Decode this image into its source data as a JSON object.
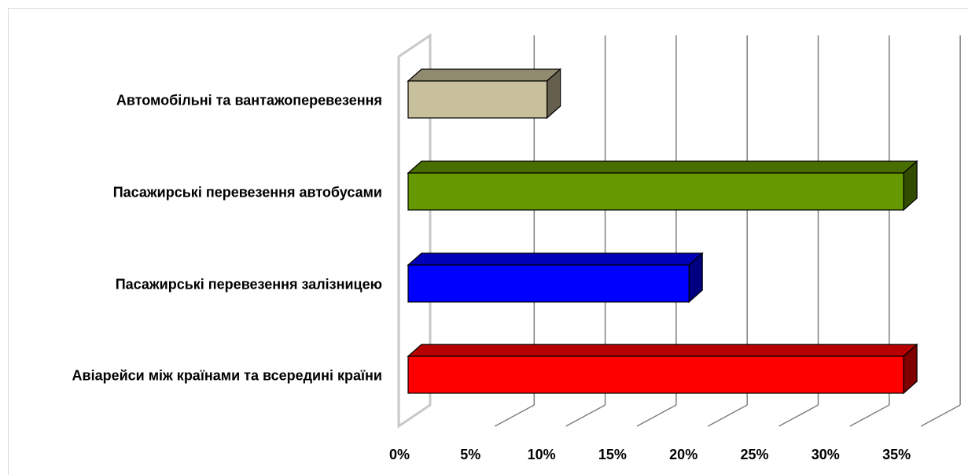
{
  "chart_data": {
    "type": "bar",
    "orientation": "horizontal",
    "style": "3d",
    "title": "",
    "xlabel": "",
    "ylabel": "",
    "categories": [
      "Автомобільні та вантажоперевезення",
      "Пасажирські перевезення автобусами",
      "Пасажирські перевезення залізницею",
      "Авіарейси між країнами та всередині країни"
    ],
    "values": [
      10,
      35,
      20,
      35
    ],
    "bar_colors": [
      "#c8c09a",
      "#669900",
      "#0000ff",
      "#ff0000"
    ],
    "xlim": [
      0,
      35
    ],
    "xticks": [
      "0%",
      "5%",
      "10%",
      "15%",
      "20%",
      "25%",
      "30%",
      "35%"
    ],
    "grid": true,
    "legend": "none"
  }
}
